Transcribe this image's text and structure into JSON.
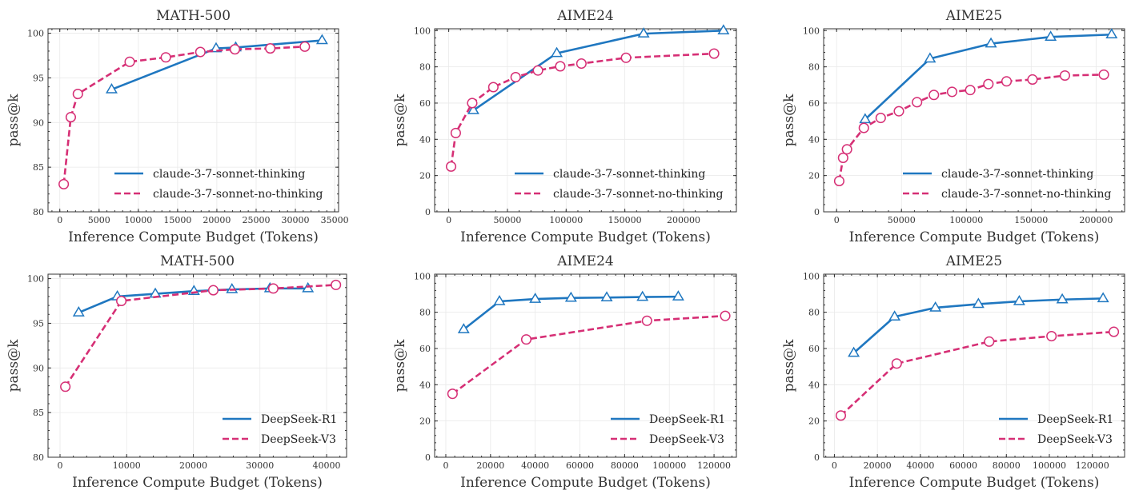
{
  "chart_data": [
    {
      "type": "line",
      "title": "MATH-500",
      "xlabel": "Inference Compute Budget (Tokens)",
      "ylabel": "pass@k",
      "xlim": [
        -1500,
        35500
      ],
      "ylim": [
        80,
        100.5
      ],
      "xticks": [
        0,
        5000,
        10000,
        15000,
        20000,
        25000,
        30000,
        35000
      ],
      "yticks": [
        80,
        85,
        90,
        95,
        100
      ],
      "grid": true,
      "legend_position": "lower-right",
      "series": [
        {
          "name": "claude-3-7-sonnet-thinking",
          "color": "#1f77c0",
          "style": "solid",
          "marker": "triangle",
          "x": [
            6600,
            19900,
            22400,
            33400
          ],
          "y": [
            93.7,
            98.3,
            98.4,
            99.2
          ]
        },
        {
          "name": "claude-3-7-sonnet-no-thinking",
          "color": "#d62f75",
          "style": "dashed",
          "marker": "circle",
          "x": [
            500,
            1400,
            2300,
            8900,
            13500,
            17900,
            22300,
            26800,
            31200
          ],
          "y": [
            83.1,
            90.6,
            93.2,
            96.8,
            97.3,
            97.9,
            98.2,
            98.3,
            98.5
          ]
        }
      ]
    },
    {
      "type": "line",
      "title": "AIME24",
      "xlabel": "Inference Compute Budget (Tokens)",
      "ylabel": "pass@k",
      "xlim": [
        -12000,
        245000
      ],
      "ylim": [
        0,
        101
      ],
      "xticks": [
        0,
        50000,
        100000,
        150000,
        200000
      ],
      "yticks": [
        0,
        20,
        40,
        60,
        80,
        100
      ],
      "grid": true,
      "legend_position": "lower-right",
      "series": [
        {
          "name": "claude-3-7-sonnet-thinking",
          "color": "#1f77c0",
          "style": "solid",
          "marker": "triangle",
          "x": [
            21000,
            92000,
            166000,
            234000
          ],
          "y": [
            56,
            87.5,
            98.3,
            100
          ]
        },
        {
          "name": "claude-3-7-sonnet-no-thinking",
          "color": "#d62f75",
          "style": "dashed",
          "marker": "circle",
          "x": [
            2000,
            6000,
            20000,
            38000,
            57000,
            76000,
            95000,
            113000,
            151000,
            226000
          ],
          "y": [
            25,
            43.5,
            60,
            68.8,
            74.3,
            78,
            80.3,
            81.8,
            85,
            87.3
          ]
        }
      ]
    },
    {
      "type": "line",
      "title": "AIME25",
      "xlabel": "Inference Compute Budget (Tokens)",
      "ylabel": "pass@k",
      "xlim": [
        -10000,
        222000
      ],
      "ylim": [
        0,
        101
      ],
      "xticks": [
        0,
        50000,
        100000,
        150000,
        200000
      ],
      "yticks": [
        0,
        20,
        40,
        60,
        80,
        100
      ],
      "grid": true,
      "legend_position": "lower-right",
      "series": [
        {
          "name": "claude-3-7-sonnet-thinking",
          "color": "#1f77c0",
          "style": "solid",
          "marker": "triangle",
          "x": [
            22000,
            72000,
            119000,
            165000,
            212000
          ],
          "y": [
            51,
            84.5,
            92.8,
            96.5,
            97.8
          ]
        },
        {
          "name": "claude-3-7-sonnet-no-thinking",
          "color": "#d62f75",
          "style": "dashed",
          "marker": "circle",
          "x": [
            2000,
            5000,
            8000,
            21000,
            34000,
            48000,
            62000,
            75000,
            89000,
            103000,
            117000,
            131000,
            151000,
            176000,
            206000
          ],
          "y": [
            17,
            29.8,
            34.5,
            46.3,
            51.8,
            55.5,
            60.5,
            64.5,
            66.2,
            67.2,
            70.5,
            72,
            73,
            75.2,
            75.7
          ]
        }
      ]
    },
    {
      "type": "line",
      "title": "MATH-500",
      "xlabel": "Inference Compute Budget (Tokens)",
      "ylabel": "pass@k",
      "xlim": [
        -1800,
        43000
      ],
      "ylim": [
        80,
        100.5
      ],
      "xticks": [
        0,
        10000,
        20000,
        30000,
        40000
      ],
      "yticks": [
        80,
        85,
        90,
        95,
        100
      ],
      "grid": true,
      "legend_position": "lower-right",
      "series": [
        {
          "name": "DeepSeek-R1",
          "color": "#1f77c0",
          "style": "solid",
          "marker": "triangle",
          "x": [
            2800,
            8600,
            14300,
            20100,
            25800,
            31500,
            37200
          ],
          "y": [
            96.2,
            98.0,
            98.3,
            98.6,
            98.8,
            98.9,
            98.9
          ]
        },
        {
          "name": "DeepSeek-V3",
          "color": "#d62f75",
          "style": "dashed",
          "marker": "circle",
          "x": [
            800,
            9200,
            23000,
            32000,
            41400
          ],
          "y": [
            87.9,
            97.5,
            98.7,
            98.9,
            99.3
          ]
        }
      ]
    },
    {
      "type": "line",
      "title": "AIME24",
      "xlabel": "Inference Compute Budget (Tokens)",
      "ylabel": "pass@k",
      "xlim": [
        -5000,
        130000
      ],
      "ylim": [
        0,
        101
      ],
      "xticks": [
        0,
        20000,
        40000,
        60000,
        80000,
        100000,
        120000
      ],
      "yticks": [
        0,
        20,
        40,
        60,
        80,
        100
      ],
      "grid": true,
      "legend_position": "lower-right",
      "series": [
        {
          "name": "DeepSeek-R1",
          "color": "#1f77c0",
          "style": "solid",
          "marker": "triangle",
          "x": [
            8000,
            24000,
            40000,
            56000,
            72000,
            88000,
            104000
          ],
          "y": [
            70.5,
            86,
            87.3,
            87.9,
            88.1,
            88.4,
            88.6
          ]
        },
        {
          "name": "DeepSeek-V3",
          "color": "#d62f75",
          "style": "dashed",
          "marker": "circle",
          "x": [
            3000,
            36000,
            90000,
            125000
          ],
          "y": [
            35,
            65,
            75.3,
            78
          ]
        }
      ]
    },
    {
      "type": "line",
      "title": "AIME25",
      "xlabel": "Inference Compute Budget (Tokens)",
      "ylabel": "pass@k",
      "xlim": [
        -5000,
        135000
      ],
      "ylim": [
        0,
        101
      ],
      "xticks": [
        0,
        20000,
        40000,
        60000,
        80000,
        100000,
        120000
      ],
      "yticks": [
        0,
        20,
        40,
        60,
        80,
        100
      ],
      "grid": true,
      "legend_position": "lower-right",
      "series": [
        {
          "name": "DeepSeek-R1",
          "color": "#1f77c0",
          "style": "solid",
          "marker": "triangle",
          "x": [
            9000,
            28000,
            47000,
            67000,
            86000,
            106000,
            125000
          ],
          "y": [
            57.5,
            77.5,
            82.5,
            84.5,
            86,
            87,
            87.6
          ]
        },
        {
          "name": "DeepSeek-V3",
          "color": "#d62f75",
          "style": "dashed",
          "marker": "circle",
          "x": [
            3000,
            29000,
            72000,
            101000,
            130000
          ],
          "y": [
            23,
            51.7,
            63.8,
            66.8,
            69.2
          ]
        }
      ]
    }
  ]
}
